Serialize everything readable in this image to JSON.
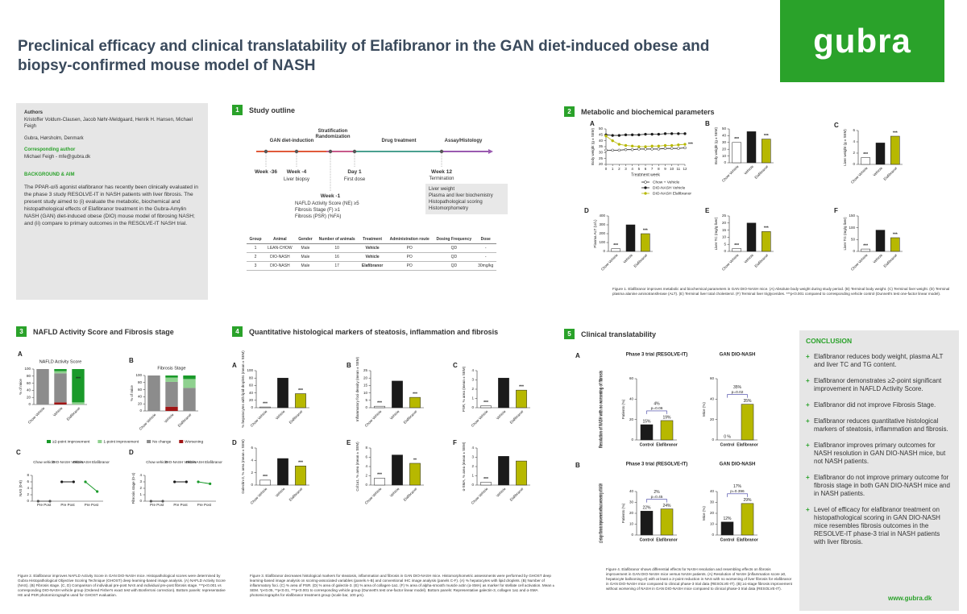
{
  "header": {
    "title": "Preclinical efficacy and clinical translatability of Elafibranor in the GAN diet-induced obese and biopsy-confirmed mouse model of NASH",
    "logo": "gubra"
  },
  "info": {
    "authors_heading": "Authors",
    "authors": "Kristoffer Voldum-Clausen, Jacob Nøhr-Meldgaard, Henrik H. Hansen, Michael Feigh",
    "affiliation": "Gubra, Hørsholm, Denmark",
    "corresponding_heading": "Corresponding author",
    "corresponding": "Michael Feigh - mfe@gubra.dk",
    "background_heading": "BACKGROUND & AIM",
    "background": "The PPAR-α/δ agonist elafibranor has recently been clinically evaluated in the phase 3 study RESOLVE-IT in NASH patients with liver fibrosis. The present study aimed to (i) evaluate the metabolic, biochemical and histopathological effects of Elafibranor treatment in the Gubra-Amylin NASH (GAN) diet-induced obese (DIO) mouse model of fibrosing NASH; and (ii) compare to primary outcomes in the RESOLVE-IT NASH trial."
  },
  "outline": {
    "number": "1",
    "title": "Study outline",
    "phases": [
      "GAN diet-induction",
      "Stratification Randomization",
      "Drug treatment",
      "Assay/Histology"
    ],
    "milestones": [
      {
        "week": "Week -36"
      },
      {
        "week": "Week -4",
        "note": "Liver biopsy"
      },
      {
        "week": "Day 1",
        "note": "First dose"
      },
      {
        "week": "Week 12",
        "note": "Termination"
      }
    ],
    "stratification": {
      "week": "Week -1",
      "criteria": [
        "NAFLD Activity Score (NE) ≥5",
        "Fibrosis Stage (F) ≥1",
        "Fibrosis (PSR) (%FA)"
      ]
    },
    "assays": [
      "Liver weight",
      "Plasma and liver biochemistry",
      "Histopathological scoring",
      "Histomorphometry"
    ],
    "table": {
      "header": [
        "Group",
        "Animal",
        "Gender",
        "Number of animals",
        "Treatment",
        "Administration route",
        "Dosing Frequency",
        "Dose"
      ],
      "rows": [
        [
          "1",
          "LEAN-CHOW",
          "Male",
          "10",
          "Vehicle",
          "PO",
          "QD",
          "-"
        ],
        [
          "2",
          "DIO-NASH",
          "Male",
          "16",
          "Vehicle",
          "PO",
          "QD",
          "-"
        ],
        [
          "3",
          "DIO-NASH",
          "Male",
          "17",
          "Elafibranor",
          "PO",
          "QD",
          "30mg/kg"
        ]
      ]
    }
  },
  "metabolic": {
    "number": "2",
    "title": "Metabolic and biochemical parameters",
    "group_colors": [
      "#ffffff",
      "#1a1a1a",
      "#b7b800"
    ],
    "bodyweight": {
      "letter": "A",
      "ylabel": "Body weight (g ± SEM)",
      "xlabel": "Treatment week",
      "x": [
        0,
        1,
        2,
        3,
        4,
        5,
        6,
        7,
        8,
        9,
        10,
        11,
        12
      ],
      "xlim": [
        0,
        12
      ],
      "ylim": [
        20,
        50
      ],
      "yticks": [
        20,
        25,
        30,
        35,
        40,
        45,
        50
      ],
      "series": [
        {
          "name": "Chow + Vehicle",
          "color": "#ffffff",
          "values": [
            32,
            32,
            32,
            32.5,
            32.5,
            33,
            33,
            33,
            33,
            33.5,
            33.5,
            33.5,
            34
          ]
        },
        {
          "name": "DIO-NASH Vehicle",
          "color": "#1a1a1a",
          "values": [
            45,
            44.5,
            44.5,
            45,
            45,
            45,
            45.5,
            45.5,
            45.5,
            46,
            46,
            46,
            46
          ]
        },
        {
          "name": "DIO-NASH Elafibranor",
          "color": "#b7b800",
          "values": [
            44,
            40,
            37,
            36,
            35.5,
            35,
            35,
            35.5,
            35.5,
            36,
            36,
            36.5,
            37
          ]
        }
      ],
      "significance": "***"
    },
    "panels": [
      {
        "letter": "B",
        "ylabel": "Body weight (g ± SEM)",
        "categories": [
          "Chow Vehicle",
          "Vehicle",
          "Elafibranor"
        ],
        "values": [
          30,
          46,
          35
        ],
        "ylim": [
          0,
          50
        ],
        "yticks": [
          0,
          10,
          20,
          30,
          40,
          50
        ],
        "significance": [
          "***",
          null,
          "***"
        ]
      },
      {
        "letter": "C",
        "ylabel": "Liver weight (g ± SEM)",
        "categories": [
          "Chow Vehicle",
          "Vehicle",
          "Elafibranor"
        ],
        "values": [
          1.2,
          3.8,
          5.0
        ],
        "ylim": [
          0,
          6
        ],
        "yticks": [
          0,
          2,
          4,
          6
        ],
        "significance": [
          "***",
          null,
          "***"
        ]
      },
      {
        "letter": "D",
        "ylabel": "Plasma ALT (U/L)",
        "categories": [
          "Chow Vehicle",
          "Vehicle",
          "Elafibranor"
        ],
        "values": [
          30,
          300,
          200
        ],
        "ylim": [
          0,
          400
        ],
        "yticks": [
          0,
          100,
          200,
          300,
          400
        ],
        "significance": [
          "***",
          null,
          "***"
        ]
      },
      {
        "letter": "E",
        "ylabel": "Liver TC (mg/g liver)",
        "categories": [
          "Chow Vehicle",
          "Vehicle",
          "Elafibranor"
        ],
        "values": [
          2,
          20,
          14
        ],
        "ylim": [
          0,
          25
        ],
        "yticks": [
          0,
          5,
          10,
          15,
          20,
          25
        ],
        "significance": [
          "***",
          null,
          "***"
        ]
      },
      {
        "letter": "F",
        "ylabel": "Liver TG (mg/g liver)",
        "categories": [
          "Chow Vehicle",
          "Vehicle",
          "Elafibranor"
        ],
        "values": [
          10,
          90,
          58
        ],
        "ylim": [
          0,
          150
        ],
        "yticks": [
          0,
          50,
          100,
          150
        ],
        "significance": [
          "***",
          null,
          "***"
        ]
      }
    ],
    "caption": "Figure 1. Elafibranor improves metabolic and biochemical parameters in GAN DIO-NASH mice. (A) Absolute body weight during study period. (B) Terminal body weight. (C) Terminal liver weight. (D) Terminal plasma alanine aminotransferase (ALT). (E) Terminal liver total cholesterol. (F) Terminal liver triglycerides. ***p<0.001 compared to corresponding vehicle control (Dunnett's test one-factor linear model)."
  },
  "nafld": {
    "number": "3",
    "title": "NAFLD Activity Score and Fibrosis stage",
    "stacked": [
      {
        "letter": "A",
        "title": "NAFLD Activity Score",
        "ylabel": "% of mice",
        "categories": [
          "Chow Vehicle",
          "Vehicle",
          "Elafibranor"
        ],
        "ylim": [
          0,
          100
        ],
        "yticks": [
          0,
          20,
          40,
          60,
          80,
          100
        ],
        "significance": [
          null,
          null,
          "***"
        ],
        "series": [
          {
            "name": "Worsening",
            "color": "#a01515",
            "values": [
              0,
              6,
              0
            ]
          },
          {
            "name": "No change",
            "color": "#8c8c8c",
            "values": [
              100,
              82,
              0
            ]
          },
          {
            "name": "1-point improvement",
            "color": "#8fd18f",
            "values": [
              0,
              6,
              6
            ]
          },
          {
            "name": "≥2-point improvement",
            "color": "#1a9a2a",
            "values": [
              0,
              6,
              94
            ]
          }
        ]
      },
      {
        "letter": "B",
        "title": "Fibrosis Stage",
        "ylabel": "% of mice",
        "categories": [
          "Chow Vehicle",
          "Vehicle",
          "Elafibranor"
        ],
        "ylim": [
          0,
          100
        ],
        "yticks": [
          0,
          20,
          40,
          60,
          80,
          100
        ],
        "significance": [
          null,
          null,
          null
        ],
        "series": [
          {
            "color": "#a01515",
            "values": [
              0,
              12,
              0
            ]
          },
          {
            "color": "#8c8c8c",
            "values": [
              100,
              70,
              65
            ]
          },
          {
            "color": "#8fd18f",
            "values": [
              0,
              12,
              25
            ]
          },
          {
            "color": "#1a9a2a",
            "values": [
              0,
              6,
              10
            ]
          }
        ]
      }
    ],
    "paired": [
      {
        "letter": "C",
        "ylabel": "NAS (0-8)",
        "ylim": [
          0,
          8
        ],
        "yticks": [
          0,
          2,
          4,
          6,
          8
        ],
        "tick_label": "Pre Post",
        "groups": [
          {
            "name": "Chow vehicle",
            "pre": 0,
            "post": 0,
            "color": "#555555"
          },
          {
            "name": "DIO-NASH Vehicle",
            "pre": 6,
            "post": 6,
            "color": "#1a1a1a"
          },
          {
            "name": "DIO-NASH Elafibranor",
            "pre": 6,
            "post": 3,
            "color": "#1a9a2a"
          }
        ]
      },
      {
        "letter": "D",
        "ylabel": "Fibrosis stage (0-4)",
        "ylim": [
          0,
          4
        ],
        "yticks": [
          0,
          1,
          2,
          3,
          4
        ],
        "tick_label": "Pre Post",
        "groups": [
          {
            "name": "Chow vehicle",
            "pre": 0,
            "post": 0,
            "color": "#555555"
          },
          {
            "name": "DIO-NASH Vehicle",
            "pre": 3,
            "post": 3,
            "color": "#1a1a1a"
          },
          {
            "name": "DIO-NASH Elafibranor",
            "pre": 3,
            "post": 2.7,
            "color": "#1a9a2a"
          }
        ]
      }
    ],
    "caption": "Figure 2. Elafibranor improves NAFLD Activity Score in GAN DIO-NASH mice. Histopathological scores were determined by Gubra Histopathological Objective Scoring Technique (GHOST) deep learning-based image analysis. (A) NAFLD Activity Score (NAS). (B) Fibrosis stage. (C, D) Comparison of individual pre-post NAS and individual pre-post fibrosis stage. ***p<0.001 vs corresponding DIO-NASH vehicle group (Ordered Fisher's exact test with Bonferroni correction). Bottom panels: representative HE and PSR photomicrographs used for GHOST evaluation."
  },
  "histology": {
    "number": "4",
    "title": "Quantitative histological markers of steatosis, inflammation and fibrosis",
    "group_colors": [
      "#ffffff",
      "#1a1a1a",
      "#b7b800"
    ],
    "panels": [
      {
        "letter": "A",
        "ylabel": "% hepatocytes with lipid droplets (mean ± SEM)",
        "categories": [
          "Chow Vehicle",
          "Vehicle",
          "Elafibranor"
        ],
        "values": [
          2,
          80,
          38
        ],
        "ylim": [
          0,
          100
        ],
        "yticks": [
          0,
          20,
          40,
          60,
          80,
          100
        ],
        "significance": [
          "***",
          null,
          "***"
        ]
      },
      {
        "letter": "B",
        "ylabel": "Inflammatory foci density (mean ± SEM)",
        "categories": [
          "Chow Vehicle",
          "Vehicle",
          "Elafibranor"
        ],
        "values": [
          1,
          18,
          7
        ],
        "ylim": [
          0,
          25
        ],
        "yticks": [
          0,
          5,
          10,
          15,
          20,
          25
        ],
        "significance": [
          "***",
          null,
          "***"
        ]
      },
      {
        "letter": "C",
        "ylabel": "PSR, % area (mean ± SEM)",
        "categories": [
          "Chow Vehicle",
          "Vehicle",
          "Elafibranor"
        ],
        "values": [
          0.2,
          3.2,
          1.9
        ],
        "ylim": [
          0,
          4
        ],
        "yticks": [
          0,
          1,
          2,
          3,
          4
        ],
        "significance": [
          "***",
          null,
          "***"
        ]
      },
      {
        "letter": "D",
        "ylabel": "Galectin-3, % area (mean ± SEM)",
        "categories": [
          "Chow Vehicle",
          "Vehicle",
          "Elafibranor"
        ],
        "values": [
          0.8,
          4.3,
          3.1
        ],
        "ylim": [
          0,
          6
        ],
        "yticks": [
          0,
          2,
          4,
          6
        ],
        "significance": [
          "***",
          null,
          "***"
        ]
      },
      {
        "letter": "E",
        "ylabel": "Col1a1, % area (mean ± SEM)",
        "categories": [
          "Chow Vehicle",
          "Vehicle",
          "Elafibranor"
        ],
        "values": [
          1.5,
          6.5,
          4.7
        ],
        "ylim": [
          0,
          8
        ],
        "yticks": [
          0,
          2,
          4,
          6,
          8
        ],
        "significance": [
          "***",
          null,
          "**"
        ]
      },
      {
        "letter": "F",
        "ylabel": "α-SMA, % area (mean ± SEM)",
        "categories": [
          "Chow Vehicle",
          "Vehicle",
          "Elafibranor"
        ],
        "values": [
          0.3,
          3.1,
          2.6
        ],
        "ylim": [
          0,
          4
        ],
        "yticks": [
          0,
          1,
          2,
          3,
          4
        ],
        "significance": [
          "***",
          null,
          null
        ]
      }
    ],
    "caption": "Figure 3. Elafibranor decreases histological markers for steatosis, inflammation and fibrosis in GAN DIO-NASH mice. Histomorphometric assessments were performed by GHOST deep learning-based image analysis on scoring-associated variables (panels A-B) and conventional IHC image analysis (panels C-F). (A) % hepatocytes with lipid droplets. (B) Number of inflammatory foci. (C) % area of PSR. (D) % area of galectin-3. (E) % area of collagen-1a1. (F) % area of alpha-smooth muscle actin (α-SMA) as marker for stellate cell activation. Mean ± SEM. *p<0.05, **p<0.01, ***p<0.001 to corresponding vehicle group (Dunnett's test one-factor linear model). Bottom panels: Representative galectin-3, collagen 1a1 and α-SMA photomicrographs for elafibranor treatment group (scale bar, 100 µm)."
  },
  "clinical": {
    "number": "5",
    "title": "Clinical translatability",
    "column_titles": [
      "Phase 3 trial (RESOLVE-IT)",
      "GAN DIO-NASH"
    ],
    "bar_colors": [
      "#1a1a1a",
      "#b7b800"
    ],
    "rows": [
      {
        "letter": "A",
        "label": "Resolution of NASH with no worsening of fibrosis",
        "charts": [
          {
            "ylabel": "Patients (%)",
            "categories": [
              "Control",
              "Elafibranor"
            ],
            "values": [
              15,
              19
            ],
            "value_labels": [
              "15%",
              "19%"
            ],
            "ylim": [
              0,
              60
            ],
            "yticks": [
              0,
              20,
              40,
              60
            ],
            "difference": "4%",
            "p": "p=0.06"
          },
          {
            "ylabel": "Mice (%)",
            "categories": [
              "Control",
              "Elafibranor"
            ],
            "values": [
              0,
              35
            ],
            "value_labels": [
              "0 %",
              "35%"
            ],
            "ylim": [
              0,
              60
            ],
            "yticks": [
              0,
              20,
              40,
              60
            ],
            "difference": "35%",
            "p": "p=0.02"
          }
        ]
      },
      {
        "letter": "B",
        "label": "≥1-stage fibrosis improvement without worsening of NASH",
        "charts": [
          {
            "ylabel": "Patients (%)",
            "categories": [
              "Control",
              "Elafibranor"
            ],
            "values": [
              22,
              24
            ],
            "value_labels": [
              "22%",
              "24%"
            ],
            "ylim": [
              0,
              40
            ],
            "yticks": [
              0,
              10,
              20,
              30,
              40
            ],
            "difference": "2%",
            "p": "p=0.45"
          },
          {
            "ylabel": "Mice (%)",
            "categories": [
              "Control",
              "Elafibranor"
            ],
            "values": [
              12,
              29
            ],
            "value_labels": [
              "12%",
              "29%"
            ],
            "ylim": [
              0,
              40
            ],
            "yticks": [
              0,
              10,
              20,
              30,
              40
            ],
            "difference": "17%",
            "p": "p=0.396"
          }
        ]
      }
    ],
    "caption": "Figure 4. Elafibranor shows differential effects for NASH resolution and resembling effects on fibrosis improvement in GAN DIO-NASH mice versus NASH patients. (A) Resolution of NASH (inflammation score ≥0, hepatocyte ballooning=0) with at least a 2-point reduction in NAS with no worsening of liver fibrosis for elafibranor in GAN DIO-NASH mice compared to clinical phase-3 trial data (RESOLVE-IT). (B) ≥1-stage fibrosis improvement without worsening of NASH in GAN DIO-NASH mice compared to clinical phase-3 trial data (RESOLVE-IT)."
  },
  "conclusion": {
    "heading": "CONCLUSION",
    "items": [
      "Elafibranor reduces body weight, plasma ALT and liver TC and TG content.",
      "Elafibranor demonstrates ≥2-point significant improvement in NAFLD Activity Score.",
      "Elafibranor did not improve Fibrosis Stage.",
      "Elafibranor reduces quantitative histological markers of steatosis, inflammation and fibrosis.",
      "Elafibranor improves primary outcomes for NASH resolution in GAN DIO-NASH mice, but not NASH patients.",
      "Elafibranor do not improve primary outcome for fibrosis stage in both GAN DIO-NASH mice and in NASH patients.",
      "Level of efficacy for elafibranor treatment on histopathological scoring in GAN DIO-NASH mice resembles fibrosis outcomes in the RESOLVE-IT phase-3 trial in NASH patients with liver fibrosis."
    ],
    "url": "www.gubra.dk"
  }
}
